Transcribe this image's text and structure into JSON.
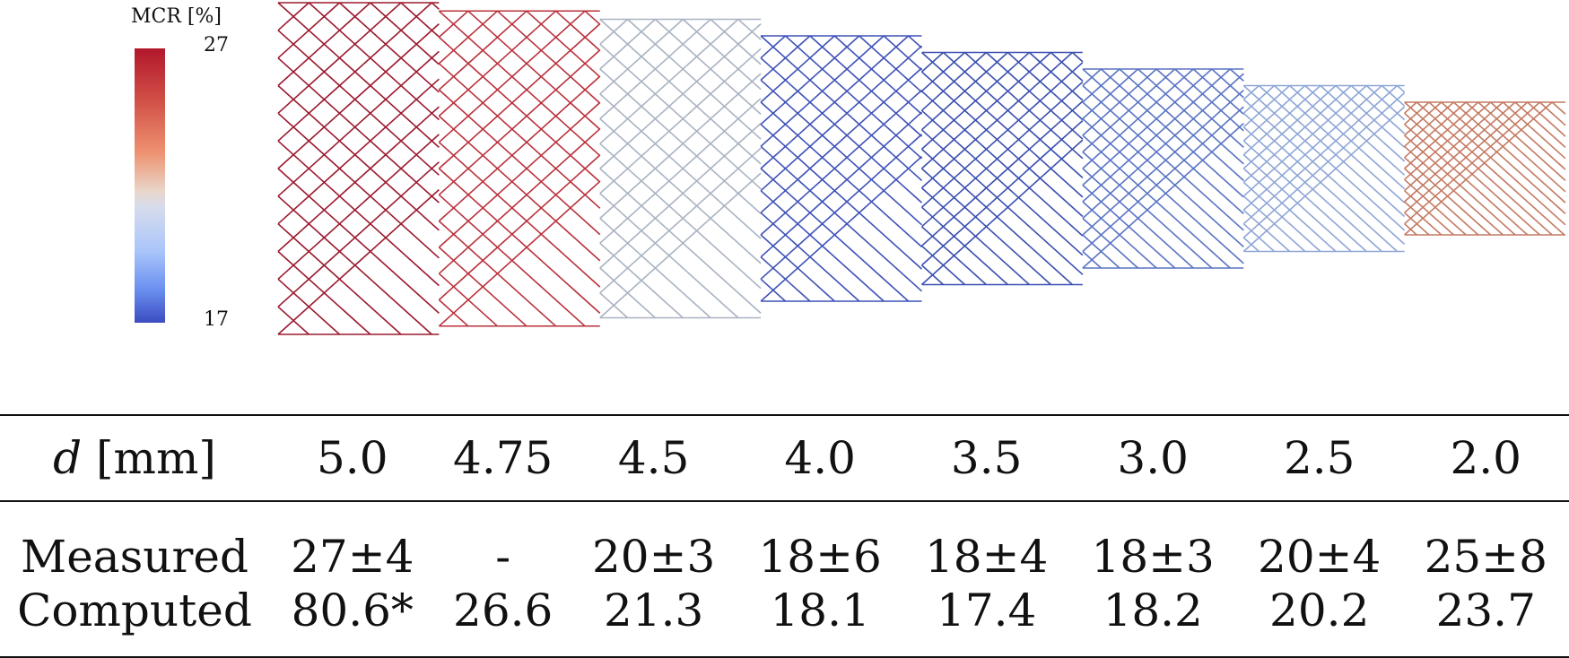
{
  "colorbar": {
    "title": "MCR [%]",
    "max_label": "27",
    "min_label": "17",
    "max_value": 27,
    "min_value": 17,
    "colormap": "coolwarm",
    "colors": [
      "#b2182b",
      "#ee9270",
      "#ddd8d4",
      "#a9c5fa",
      "#3b4cc0"
    ]
  },
  "stent_segments": [
    {
      "diameter": "5.0",
      "mcr_color": "#9b1a2f"
    },
    {
      "diameter": "4.75",
      "mcr_color": "#b9313c"
    },
    {
      "diameter": "4.5",
      "mcr_color": "#a9b3c2"
    },
    {
      "diameter": "4.0",
      "mcr_color": "#3f52b8"
    },
    {
      "diameter": "3.5",
      "mcr_color": "#3b4fb0"
    },
    {
      "diameter": "3.0",
      "mcr_color": "#5a74c4"
    },
    {
      "diameter": "2.5",
      "mcr_color": "#8fa6d6"
    },
    {
      "diameter": "2.0",
      "mcr_color": "#c47a62"
    }
  ],
  "table": {
    "header": {
      "symbol": "d",
      "unit": "[mm]",
      "values": [
        "5.0",
        "4.75",
        "4.5",
        "4.0",
        "3.5",
        "3.0",
        "2.5",
        "2.0"
      ]
    },
    "rows": [
      {
        "label": "Measured",
        "values": [
          "27±4",
          "-",
          "20±3",
          "18±6",
          "18±4",
          "18±3",
          "20±4",
          "25±8"
        ]
      },
      {
        "label": "Computed",
        "values": [
          "80.6*",
          "26.6",
          "21.3",
          "18.1",
          "17.4",
          "18.2",
          "20.2",
          "23.7"
        ]
      }
    ]
  }
}
